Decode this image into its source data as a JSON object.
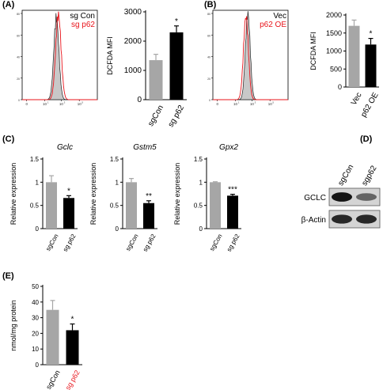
{
  "panels": {
    "A": "(A)",
    "B": "(B)",
    "C": "(C)",
    "D": "(D)",
    "E": "(E)"
  },
  "colors": {
    "control": "#a6a6a6",
    "treated": "#000000",
    "red": "#e8141b",
    "hist_fill": "#c8c8c8"
  },
  "chart_data": [
    {
      "id": "A-hist",
      "type": "histogram",
      "legend": [
        {
          "name": "sg Con",
          "color": "#000000"
        },
        {
          "name": "sg p62",
          "color": "#e8141b"
        }
      ],
      "x_ticks": [
        "0",
        "10",
        "10",
        "10"
      ],
      "x_tick_exp": [
        "",
        "1",
        "3",
        "5"
      ],
      "y_ticks": [
        "0",
        "20",
        "40",
        "60",
        "80"
      ],
      "series": [
        {
          "name": "sg Con",
          "style": "gray-filled",
          "mu": 0.455,
          "sigma": 0.034,
          "peak": 76
        },
        {
          "name": "sg p62",
          "style": "red-line",
          "mu": 0.482,
          "sigma": 0.036,
          "peak": 79
        }
      ]
    },
    {
      "id": "A-bar",
      "type": "bar",
      "ylabel": "DCFDA MFI",
      "categories": [
        "sgCon",
        "sg p62"
      ],
      "values": [
        1350,
        2300
      ],
      "errors": [
        200,
        220
      ],
      "ylim": [
        0,
        3000
      ],
      "yticks": [
        0,
        1000,
        2000,
        3000
      ],
      "significance": [
        "",
        "*"
      ]
    },
    {
      "id": "B-hist",
      "type": "histogram",
      "legend": [
        {
          "name": "Vec",
          "color": "#000000"
        },
        {
          "name": "p62 OE",
          "color": "#e8141b"
        }
      ],
      "x_ticks": [
        "0",
        "10",
        "10",
        "10"
      ],
      "x_tick_exp": [
        "",
        "1",
        "3",
        "5"
      ],
      "y_ticks": [
        "0",
        "20",
        "40",
        "60",
        "80"
      ],
      "series": [
        {
          "name": "Vec",
          "style": "gray-filled",
          "mu": 0.465,
          "sigma": 0.032,
          "peak": 80
        },
        {
          "name": "p62 OE",
          "style": "red-line",
          "mu": 0.44,
          "sigma": 0.033,
          "peak": 77
        }
      ]
    },
    {
      "id": "B-bar",
      "type": "bar",
      "ylabel": "DCFDA MFI",
      "categories": [
        "Vec",
        "p62 OE"
      ],
      "values": [
        1700,
        1180
      ],
      "errors": [
        160,
        170
      ],
      "ylim": [
        0,
        2000
      ],
      "yticks": [
        0,
        500,
        1000,
        1500,
        2000
      ],
      "significance": [
        "",
        "*"
      ]
    },
    {
      "id": "C-gclc",
      "type": "bar",
      "title": "Gclc",
      "ylabel": "Relative expression",
      "categories": [
        "sgCon",
        "sg p62"
      ],
      "values": [
        1.0,
        0.66
      ],
      "errors": [
        0.14,
        0.05
      ],
      "ylim": [
        0,
        1.5
      ],
      "yticks": [
        0.0,
        0.5,
        1.0,
        1.5
      ],
      "significance": [
        "",
        "*"
      ]
    },
    {
      "id": "C-gstm5",
      "type": "bar",
      "title": "Gstm5",
      "ylabel": "Relative expression",
      "categories": [
        "sgCon",
        "sg p62"
      ],
      "values": [
        1.0,
        0.55
      ],
      "errors": [
        0.08,
        0.05
      ],
      "ylim": [
        0,
        1.5
      ],
      "yticks": [
        0.0,
        0.5,
        1.0,
        1.5
      ],
      "significance": [
        "",
        "**"
      ]
    },
    {
      "id": "C-gpx2",
      "type": "bar",
      "title": "Gpx2",
      "ylabel": "Relative expression",
      "categories": [
        "sgCon",
        "sg p62"
      ],
      "values": [
        1.0,
        0.71
      ],
      "errors": [
        0.01,
        0.03
      ],
      "ylim": [
        0,
        1.5
      ],
      "yticks": [
        0.0,
        0.5,
        1.0,
        1.5
      ],
      "significance": [
        "",
        "***"
      ]
    },
    {
      "id": "E-bar",
      "type": "bar",
      "ylabel": "nmol/mg protein",
      "categories": [
        "sgCon",
        "sg p62"
      ],
      "values": [
        35,
        22
      ],
      "errors": [
        6,
        4
      ],
      "ylim": [
        0,
        50
      ],
      "yticks": [
        0,
        10,
        20,
        30,
        40,
        50
      ],
      "significance": [
        "",
        "*"
      ]
    }
  ],
  "western": {
    "lanes": [
      "sgCon",
      "sgp62"
    ],
    "rows": [
      {
        "label": "GCLC",
        "intensities": [
          0.95,
          0.55
        ]
      },
      {
        "label": "β-Actin",
        "intensities": [
          0.85,
          0.85
        ]
      }
    ]
  }
}
